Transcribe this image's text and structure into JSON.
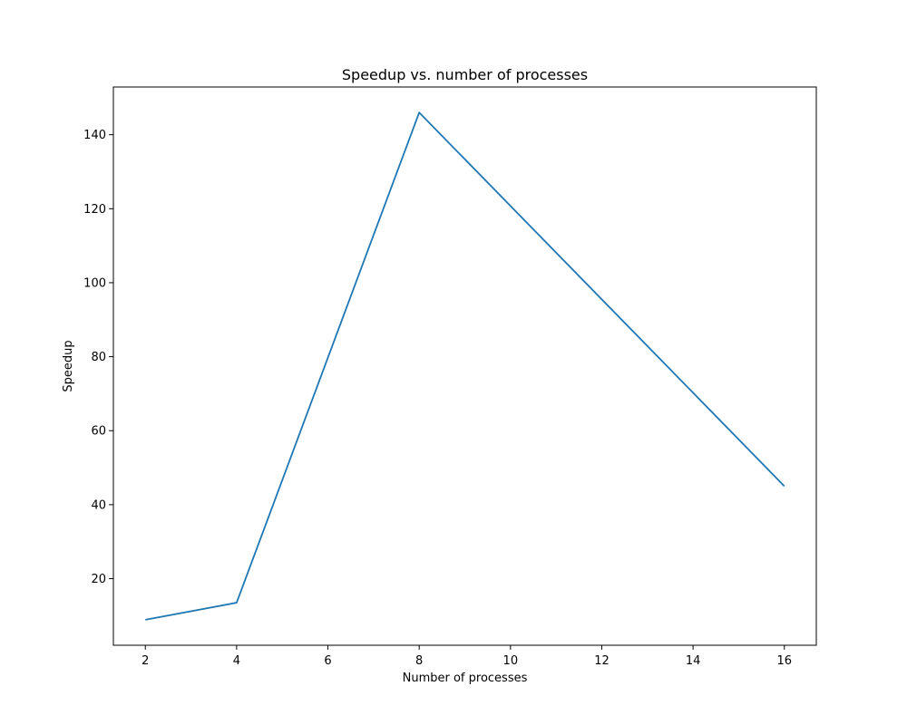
{
  "chart_data": {
    "type": "line",
    "title": "Speedup vs. number of processes",
    "xlabel": "Number of processes",
    "ylabel": "Speedup",
    "x": [
      2,
      4,
      8,
      16
    ],
    "series": [
      {
        "values": [
          8.9,
          13.5,
          146,
          45
        ],
        "color": "#1f77b4"
      }
    ],
    "xlim": [
      1.3,
      16.7
    ],
    "ylim": [
      2.0,
      152.9
    ],
    "xticks": [
      2,
      4,
      6,
      8,
      10,
      12,
      14,
      16
    ],
    "yticks": [
      20,
      40,
      60,
      80,
      100,
      120,
      140
    ],
    "grid": false
  }
}
